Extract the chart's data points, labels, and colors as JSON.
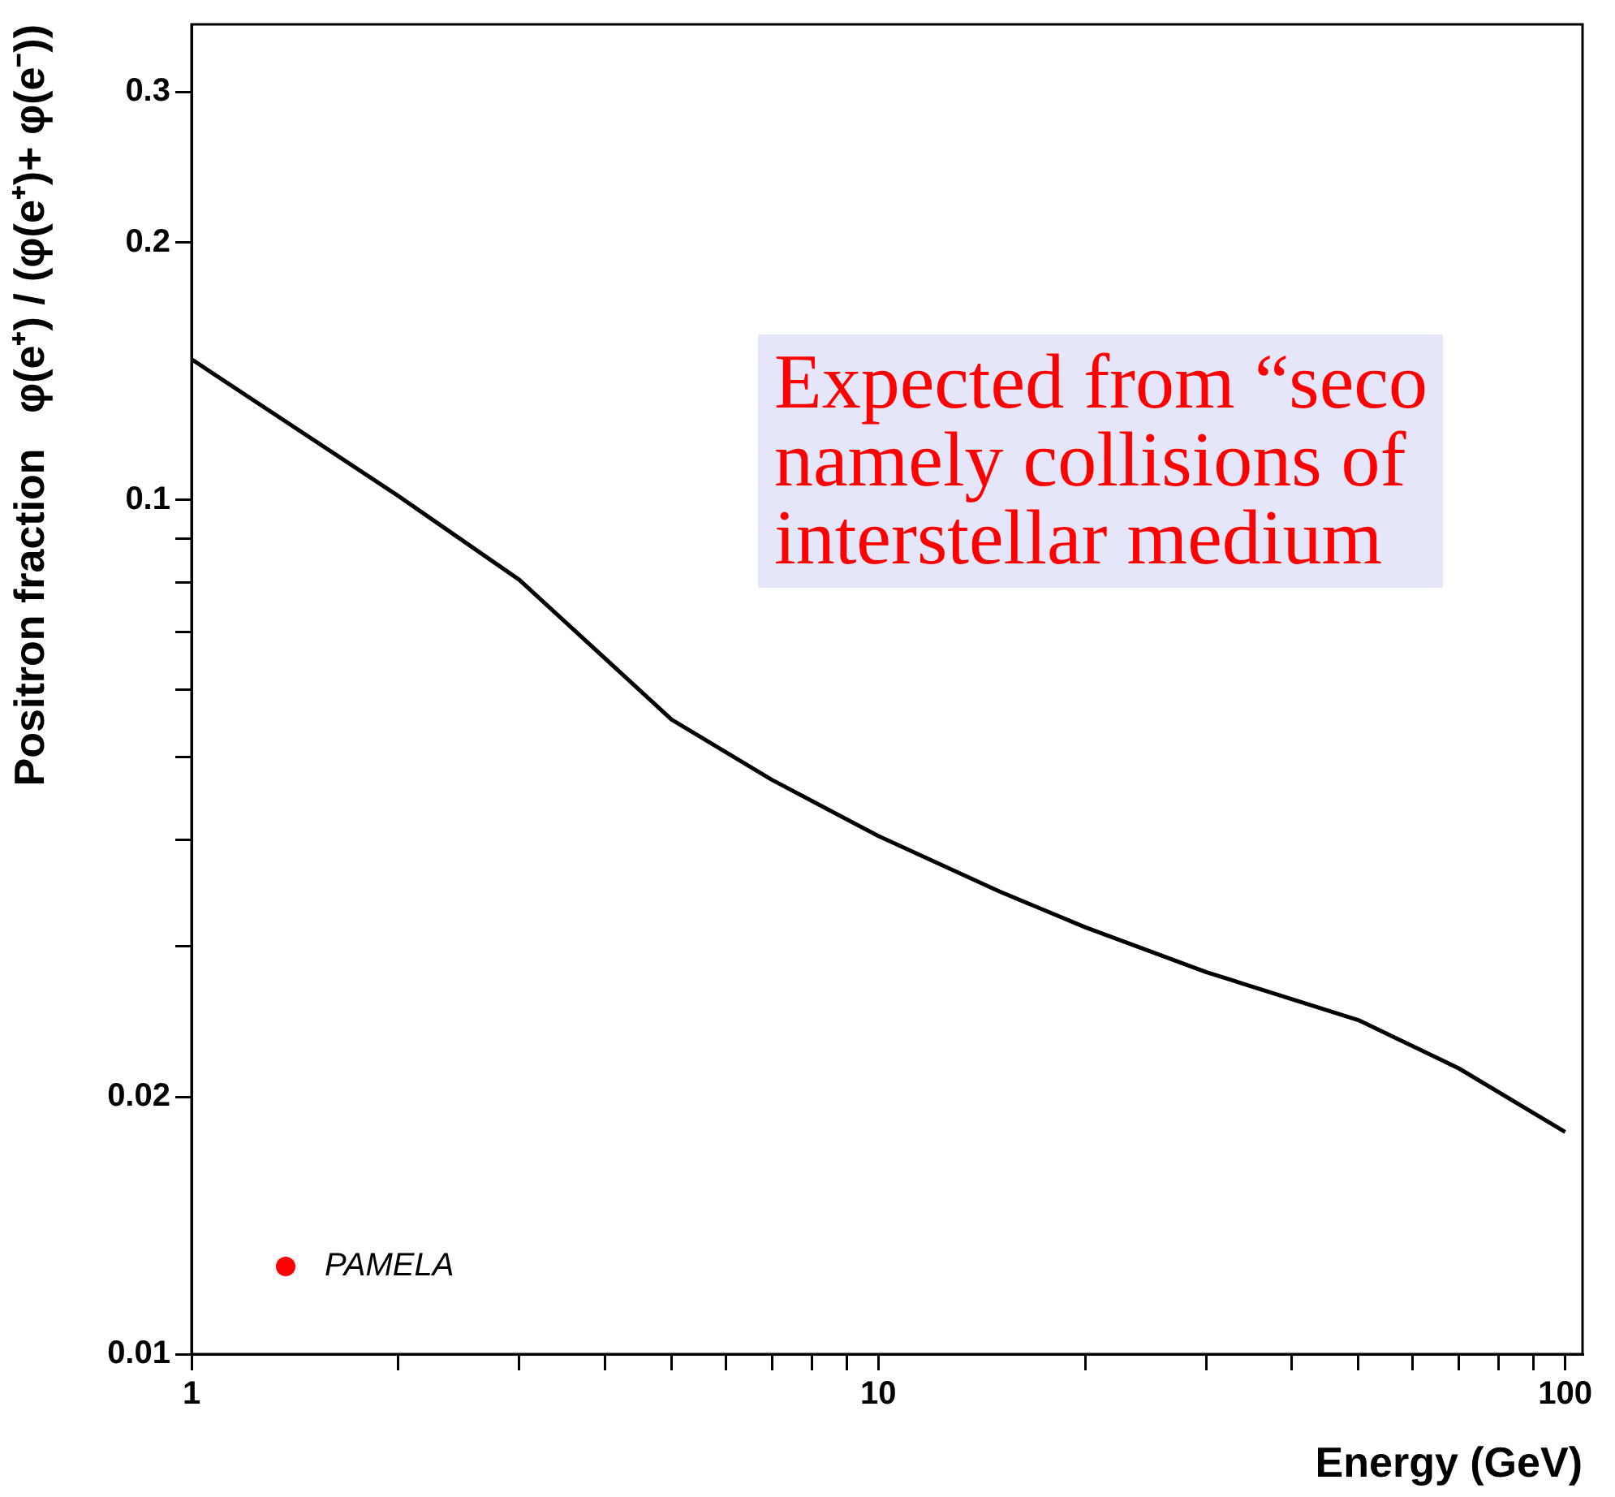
{
  "chart_data": {
    "type": "line",
    "xlabel": "Energy (GeV)",
    "ylabel": "Positron fraction   φ(e⁺) / (φ(e⁺)+ φ(e⁻))",
    "log": "xy",
    "grid": false,
    "legend": "bottom left",
    "marker": "none",
    "line_style": "solid",
    "xlim": [
      1,
      106
    ],
    "ylim": [
      0.01,
      0.36
    ],
    "xticks": [
      1,
      {
        "value": 2,
        "label": null
      },
      {
        "value": 3,
        "label": null
      },
      {
        "value": 4,
        "label": null
      },
      {
        "value": 5,
        "label": null
      },
      {
        "value": 6,
        "label": null
      },
      {
        "value": 7,
        "label": null
      },
      {
        "value": 8,
        "label": null
      },
      {
        "value": 9,
        "label": null
      },
      10,
      {
        "value": 20,
        "label": null
      },
      {
        "value": 30,
        "label": null
      },
      {
        "value": 40,
        "label": null
      },
      {
        "value": 50,
        "label": null
      },
      {
        "value": 60,
        "label": null
      },
      {
        "value": 70,
        "label": null
      },
      {
        "value": 80,
        "label": null
      },
      {
        "value": 90,
        "label": null
      },
      100
    ],
    "yticks": [
      0.01,
      0.02,
      {
        "value": 0.03,
        "label": null
      },
      {
        "value": 0.04,
        "label": null
      },
      {
        "value": 0.05,
        "label": null
      },
      {
        "value": 0.06,
        "label": null
      },
      {
        "value": 0.07,
        "label": null
      },
      {
        "value": 0.08,
        "label": null
      },
      {
        "value": 0.09,
        "label": null
      },
      0.1,
      0.2,
      0.3
    ],
    "series": [
      {
        "type": "line",
        "color": "#000000",
        "x": [
          1,
          2,
          3,
          5,
          7,
          10,
          15,
          20,
          30,
          50,
          70,
          100
        ],
        "values": [
          0.146,
          0.101,
          0.0806,
          0.0553,
          0.047,
          0.0404,
          0.0348,
          0.0316,
          0.028,
          0.0246,
          0.0216,
          0.0182
        ]
      },
      {
        "type": "scatter",
        "name": "PAMELA",
        "color": "#ff0000",
        "marker": "circle"
      }
    ],
    "annotations": [
      "Expected from “seco\nnamely collisions of\ninterstellar medium"
    ]
  }
}
